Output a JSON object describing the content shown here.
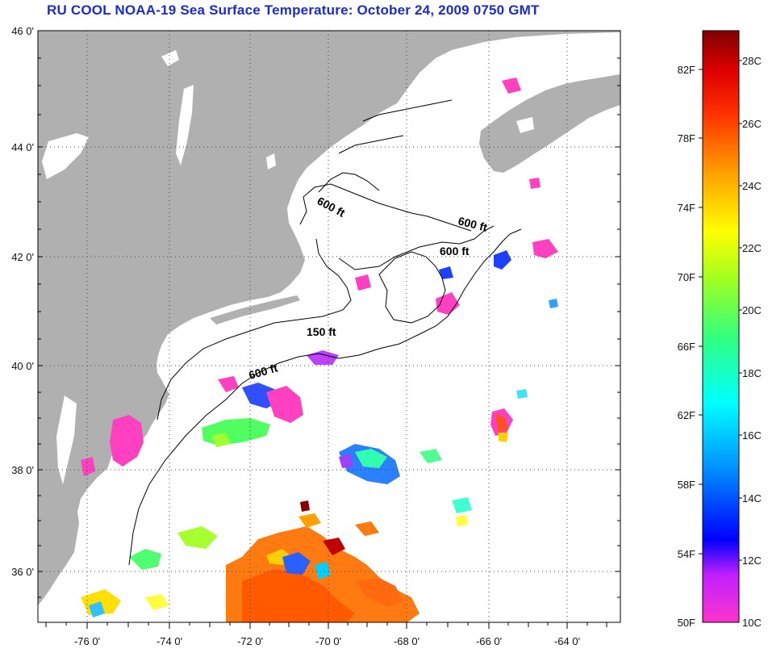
{
  "title": "RU COOL  NOAA-19  Sea Surface Temperature:  October 24, 2009 0750 GMT",
  "map": {
    "lat_ticks": [
      "46 0'",
      "44 0'",
      "42 0'",
      "40 0'",
      "38 0'",
      "36 0'"
    ],
    "lon_ticks": [
      "-76 0'",
      "-74 0'",
      "-72 0'",
      "-70 0'",
      "-68 0'",
      "-66 0'",
      "-64 0'"
    ],
    "contour_labels": [
      "600 ft",
      "600 ft",
      "600 ft",
      "150 ft",
      "600 ft"
    ],
    "land_color": "#b0b0b0",
    "grid": "dotted"
  },
  "colorbar": {
    "fahrenheit": [
      "82F",
      "78F",
      "74F",
      "70F",
      "66F",
      "62F",
      "58F",
      "54F",
      "50F"
    ],
    "celsius": [
      "28C",
      "26C",
      "24C",
      "22C",
      "20C",
      "18C",
      "16C",
      "14C",
      "12C",
      "10C"
    ],
    "range_f": [
      50,
      84
    ],
    "range_c": [
      10,
      29
    ]
  }
}
